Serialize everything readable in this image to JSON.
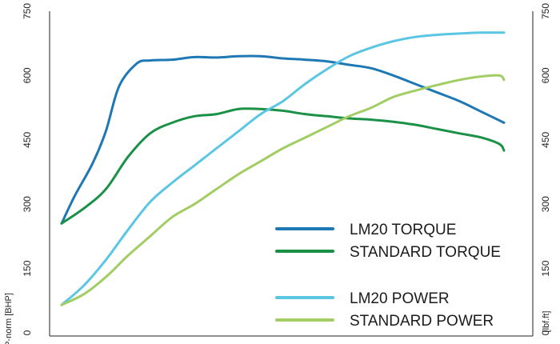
{
  "chart_data": {
    "type": "line",
    "title": "",
    "ylabel_left": "P-norm [BHP]",
    "ylabel_right": "[lbf.ft]",
    "ylim": [
      0,
      750
    ],
    "yticks": [
      0,
      150,
      300,
      450,
      600,
      750
    ],
    "ytick_labels": [
      "0",
      "150",
      "300",
      "450",
      "600",
      "750"
    ],
    "xlim": [
      0,
      10
    ],
    "grid": false,
    "legend_position": "bottom-right",
    "series": [
      {
        "name": "LM20 TORQUE",
        "color": "#1e78b4",
        "x": [
          0,
          0.3,
          0.7,
          1.0,
          1.3,
          1.7,
          2.0,
          2.5,
          3.0,
          3.5,
          4.0,
          4.5,
          5.0,
          5.5,
          6.0,
          6.5,
          7.0,
          7.5,
          8.0,
          8.5,
          9.0,
          9.5,
          10.0
        ],
        "values": [
          255,
          320,
          395,
          470,
          575,
          628,
          635,
          637,
          643,
          642,
          645,
          645,
          640,
          637,
          633,
          625,
          617,
          600,
          580,
          560,
          540,
          515,
          490
        ]
      },
      {
        "name": "STANDARD TORQUE",
        "color": "#1a9146",
        "x": [
          0,
          0.5,
          1.0,
          1.5,
          2.0,
          2.5,
          3.0,
          3.5,
          4.0,
          4.5,
          5.0,
          5.5,
          6.0,
          6.5,
          7.0,
          7.5,
          8.0,
          8.5,
          9.0,
          9.5,
          9.9,
          10.0
        ],
        "values": [
          255,
          290,
          335,
          410,
          465,
          490,
          505,
          510,
          522,
          522,
          518,
          510,
          505,
          500,
          497,
          492,
          485,
          475,
          465,
          455,
          440,
          425
        ]
      },
      {
        "name": "LM20 POWER",
        "color": "#5bc6e3",
        "x": [
          0,
          0.5,
          1.0,
          1.5,
          2.0,
          2.5,
          3.0,
          3.5,
          4.0,
          4.5,
          5.0,
          5.5,
          6.0,
          6.5,
          7.0,
          7.5,
          8.0,
          8.5,
          9.0,
          9.5,
          10.0
        ],
        "values": [
          65,
          110,
          170,
          240,
          305,
          350,
          390,
          430,
          470,
          510,
          540,
          580,
          615,
          645,
          665,
          680,
          690,
          695,
          698,
          700,
          700
        ]
      },
      {
        "name": "STANDARD POWER",
        "color": "#a2cd64",
        "x": [
          0,
          0.5,
          1.0,
          1.5,
          2.0,
          2.5,
          3.0,
          3.5,
          4.0,
          4.5,
          5.0,
          5.5,
          6.0,
          6.5,
          7.0,
          7.5,
          8.0,
          8.5,
          9.0,
          9.5,
          9.9,
          10.0
        ],
        "values": [
          65,
          90,
          130,
          180,
          225,
          270,
          300,
          335,
          370,
          400,
          430,
          455,
          480,
          505,
          525,
          550,
          565,
          578,
          590,
          598,
          600,
          590
        ]
      }
    ]
  }
}
